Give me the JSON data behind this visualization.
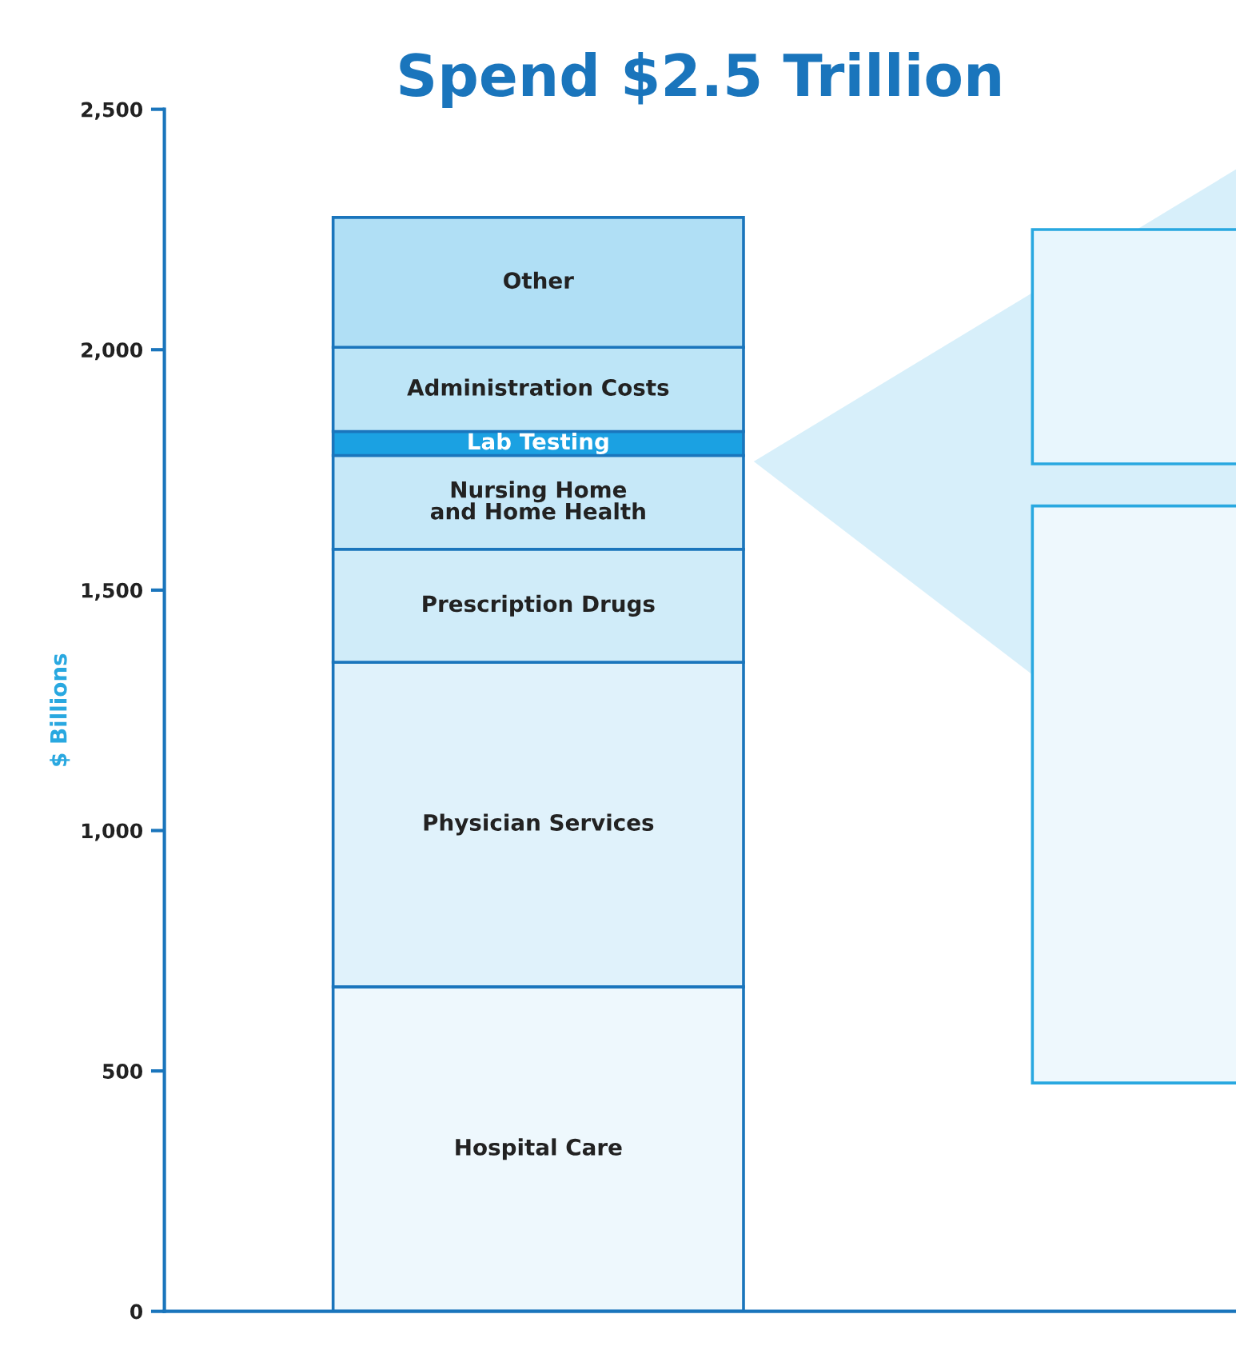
{
  "chart_data": {
    "type": "bar",
    "stacked": true,
    "title": "Spend $2.5 Trillion",
    "ylabel": "$ Billions",
    "categories": [
      null
    ],
    "series": [
      {
        "name": "Hospital Care",
        "color": "#eef8fd",
        "values": [
          675
        ]
      },
      {
        "name": "Physician Services",
        "color": "#e0f2fb",
        "values": [
          675
        ]
      },
      {
        "name": "Prescription Drugs",
        "color": "#d0ecf9",
        "values": [
          235
        ]
      },
      {
        "name": "Nursing Home\nand Home Health",
        "color": "#c6e8f8",
        "values": [
          195
        ]
      },
      {
        "name": "Lab Testing",
        "color": "#1ba1e2",
        "values": [
          50
        ]
      },
      {
        "name": "Administration Costs",
        "color": "#bde5f7",
        "values": [
          175
        ]
      },
      {
        "name": "Other",
        "color": "#b0dff5",
        "values": [
          270
        ]
      }
    ],
    "ylim": [
      0,
      2500
    ],
    "yticks": [
      0,
      {
        "value": 500,
        "label": "500"
      },
      {
        "value": 1000,
        "label": "1,000"
      },
      {
        "value": 1500,
        "label": "1,500"
      },
      {
        "value": 2000,
        "label": "2,000"
      },
      {
        "value": 2500,
        "label": "2,500"
      }
    ],
    "grid": false,
    "legend": false
  }
}
